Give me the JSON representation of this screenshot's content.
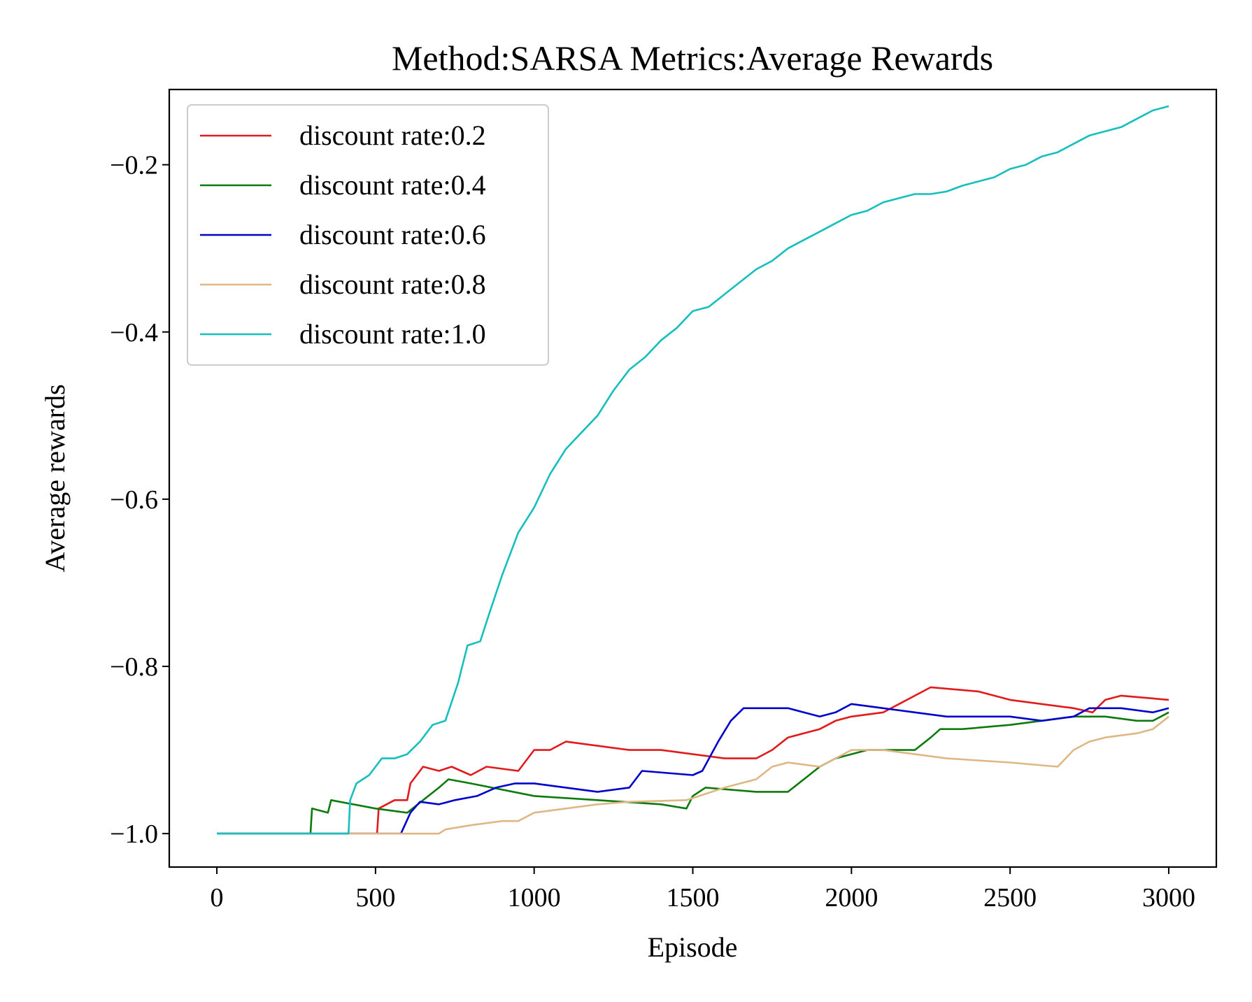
{
  "chart_data": {
    "type": "line",
    "title": "Method:SARSA   Metrics:Average Rewards",
    "xlabel": "Episode",
    "ylabel": "Average rewards",
    "xlim": [
      -150,
      3150
    ],
    "ylim": [
      -1.04,
      -0.11
    ],
    "xticks": [
      0,
      500,
      1000,
      1500,
      2000,
      2500,
      3000
    ],
    "xtick_labels": [
      "0",
      "500",
      "1000",
      "1500",
      "2000",
      "2500",
      "3000"
    ],
    "yticks": [
      -1.0,
      -0.8,
      -0.6,
      -0.4,
      -0.2
    ],
    "ytick_labels": [
      "−1.0",
      "−0.8",
      "−0.6",
      "−0.4",
      "−0.2"
    ],
    "grid": false,
    "legend_position": "upper-left",
    "series": [
      {
        "name": "discount rate:0.2",
        "color": "#e31a1c",
        "points": [
          [
            0,
            -1.0
          ],
          [
            505,
            -1.0
          ],
          [
            510,
            -0.97
          ],
          [
            560,
            -0.96
          ],
          [
            600,
            -0.96
          ],
          [
            610,
            -0.94
          ],
          [
            650,
            -0.92
          ],
          [
            700,
            -0.925
          ],
          [
            740,
            -0.92
          ],
          [
            800,
            -0.93
          ],
          [
            850,
            -0.92
          ],
          [
            950,
            -0.925
          ],
          [
            1000,
            -0.9
          ],
          [
            1050,
            -0.9
          ],
          [
            1100,
            -0.89
          ],
          [
            1300,
            -0.9
          ],
          [
            1400,
            -0.9
          ],
          [
            1500,
            -0.905
          ],
          [
            1600,
            -0.91
          ],
          [
            1700,
            -0.91
          ],
          [
            1750,
            -0.9
          ],
          [
            1800,
            -0.885
          ],
          [
            1900,
            -0.875
          ],
          [
            1950,
            -0.865
          ],
          [
            2000,
            -0.86
          ],
          [
            2100,
            -0.855
          ],
          [
            2150,
            -0.845
          ],
          [
            2200,
            -0.835
          ],
          [
            2250,
            -0.825
          ],
          [
            2400,
            -0.83
          ],
          [
            2500,
            -0.84
          ],
          [
            2700,
            -0.85
          ],
          [
            2760,
            -0.855
          ],
          [
            2800,
            -0.84
          ],
          [
            2850,
            -0.835
          ],
          [
            3000,
            -0.84
          ]
        ]
      },
      {
        "name": "discount rate:0.4",
        "color": "#0c7a0c",
        "points": [
          [
            0,
            -1.0
          ],
          [
            295,
            -1.0
          ],
          [
            300,
            -0.97
          ],
          [
            350,
            -0.975
          ],
          [
            360,
            -0.96
          ],
          [
            500,
            -0.97
          ],
          [
            600,
            -0.975
          ],
          [
            650,
            -0.96
          ],
          [
            700,
            -0.945
          ],
          [
            730,
            -0.935
          ],
          [
            800,
            -0.94
          ],
          [
            1000,
            -0.955
          ],
          [
            1200,
            -0.96
          ],
          [
            1400,
            -0.965
          ],
          [
            1480,
            -0.97
          ],
          [
            1500,
            -0.955
          ],
          [
            1540,
            -0.945
          ],
          [
            1700,
            -0.95
          ],
          [
            1800,
            -0.95
          ],
          [
            1850,
            -0.935
          ],
          [
            1900,
            -0.92
          ],
          [
            1950,
            -0.91
          ],
          [
            2000,
            -0.905
          ],
          [
            2050,
            -0.9
          ],
          [
            2200,
            -0.9
          ],
          [
            2250,
            -0.885
          ],
          [
            2280,
            -0.875
          ],
          [
            2350,
            -0.875
          ],
          [
            2500,
            -0.87
          ],
          [
            2600,
            -0.865
          ],
          [
            2700,
            -0.86
          ],
          [
            2800,
            -0.86
          ],
          [
            2900,
            -0.865
          ],
          [
            2950,
            -0.865
          ],
          [
            3000,
            -0.855
          ]
        ]
      },
      {
        "name": "discount rate:0.6",
        "color": "#0000cc",
        "points": [
          [
            0,
            -1.0
          ],
          [
            535,
            -1.0
          ],
          [
            580,
            -1.0
          ],
          [
            610,
            -0.975
          ],
          [
            640,
            -0.962
          ],
          [
            700,
            -0.965
          ],
          [
            750,
            -0.96
          ],
          [
            820,
            -0.955
          ],
          [
            880,
            -0.945
          ],
          [
            940,
            -0.94
          ],
          [
            1000,
            -0.94
          ],
          [
            1100,
            -0.945
          ],
          [
            1200,
            -0.95
          ],
          [
            1300,
            -0.945
          ],
          [
            1340,
            -0.925
          ],
          [
            1500,
            -0.93
          ],
          [
            1530,
            -0.925
          ],
          [
            1580,
            -0.89
          ],
          [
            1620,
            -0.865
          ],
          [
            1660,
            -0.85
          ],
          [
            1800,
            -0.85
          ],
          [
            1900,
            -0.86
          ],
          [
            1950,
            -0.855
          ],
          [
            2000,
            -0.845
          ],
          [
            2100,
            -0.85
          ],
          [
            2200,
            -0.855
          ],
          [
            2300,
            -0.86
          ],
          [
            2500,
            -0.86
          ],
          [
            2600,
            -0.865
          ],
          [
            2700,
            -0.86
          ],
          [
            2750,
            -0.85
          ],
          [
            2850,
            -0.85
          ],
          [
            2950,
            -0.855
          ],
          [
            3000,
            -0.85
          ]
        ]
      },
      {
        "name": "discount rate:0.8",
        "color": "#dfb784",
        "points": [
          [
            0,
            -1.0
          ],
          [
            700,
            -1.0
          ],
          [
            720,
            -0.995
          ],
          [
            800,
            -0.99
          ],
          [
            900,
            -0.985
          ],
          [
            950,
            -0.985
          ],
          [
            1000,
            -0.975
          ],
          [
            1100,
            -0.97
          ],
          [
            1200,
            -0.965
          ],
          [
            1300,
            -0.962
          ],
          [
            1480,
            -0.96
          ],
          [
            1520,
            -0.955
          ],
          [
            1600,
            -0.945
          ],
          [
            1650,
            -0.94
          ],
          [
            1700,
            -0.935
          ],
          [
            1750,
            -0.92
          ],
          [
            1800,
            -0.915
          ],
          [
            1900,
            -0.92
          ],
          [
            2000,
            -0.9
          ],
          [
            2100,
            -0.9
          ],
          [
            2200,
            -0.905
          ],
          [
            2300,
            -0.91
          ],
          [
            2500,
            -0.915
          ],
          [
            2650,
            -0.92
          ],
          [
            2700,
            -0.9
          ],
          [
            2750,
            -0.89
          ],
          [
            2800,
            -0.885
          ],
          [
            2900,
            -0.88
          ],
          [
            2950,
            -0.875
          ],
          [
            3000,
            -0.86
          ]
        ]
      },
      {
        "name": "discount rate:1.0",
        "color": "#17bebe",
        "points": [
          [
            0,
            -1.0
          ],
          [
            415,
            -1.0
          ],
          [
            420,
            -0.96
          ],
          [
            440,
            -0.94
          ],
          [
            480,
            -0.93
          ],
          [
            520,
            -0.91
          ],
          [
            560,
            -0.91
          ],
          [
            600,
            -0.905
          ],
          [
            640,
            -0.89
          ],
          [
            680,
            -0.87
          ],
          [
            720,
            -0.865
          ],
          [
            760,
            -0.82
          ],
          [
            790,
            -0.775
          ],
          [
            830,
            -0.77
          ],
          [
            860,
            -0.735
          ],
          [
            900,
            -0.69
          ],
          [
            950,
            -0.64
          ],
          [
            1000,
            -0.61
          ],
          [
            1050,
            -0.57
          ],
          [
            1100,
            -0.54
          ],
          [
            1150,
            -0.52
          ],
          [
            1200,
            -0.5
          ],
          [
            1250,
            -0.47
          ],
          [
            1300,
            -0.445
          ],
          [
            1350,
            -0.43
          ],
          [
            1400,
            -0.41
          ],
          [
            1450,
            -0.395
          ],
          [
            1500,
            -0.375
          ],
          [
            1550,
            -0.37
          ],
          [
            1600,
            -0.355
          ],
          [
            1650,
            -0.34
          ],
          [
            1700,
            -0.325
          ],
          [
            1750,
            -0.315
          ],
          [
            1800,
            -0.3
          ],
          [
            1850,
            -0.29
          ],
          [
            1900,
            -0.28
          ],
          [
            1950,
            -0.27
          ],
          [
            2000,
            -0.26
          ],
          [
            2050,
            -0.255
          ],
          [
            2100,
            -0.245
          ],
          [
            2150,
            -0.24
          ],
          [
            2200,
            -0.235
          ],
          [
            2250,
            -0.235
          ],
          [
            2300,
            -0.232
          ],
          [
            2350,
            -0.225
          ],
          [
            2400,
            -0.22
          ],
          [
            2450,
            -0.215
          ],
          [
            2500,
            -0.205
          ],
          [
            2550,
            -0.2
          ],
          [
            2600,
            -0.19
          ],
          [
            2650,
            -0.185
          ],
          [
            2700,
            -0.175
          ],
          [
            2750,
            -0.165
          ],
          [
            2800,
            -0.16
          ],
          [
            2850,
            -0.155
          ],
          [
            2900,
            -0.145
          ],
          [
            2950,
            -0.135
          ],
          [
            3000,
            -0.13
          ]
        ]
      }
    ]
  }
}
